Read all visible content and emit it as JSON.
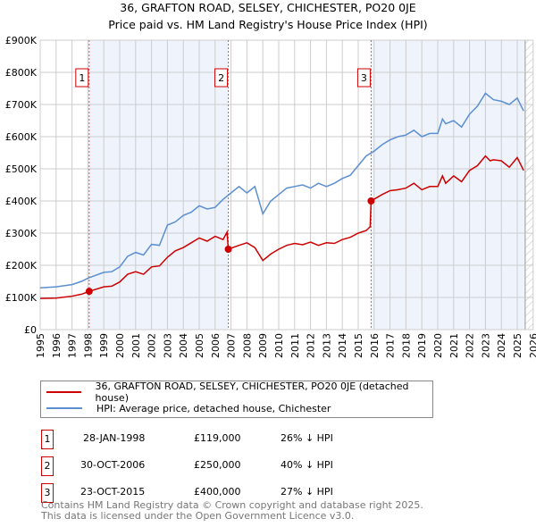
{
  "title_line1": "36, GRAFTON ROAD, SELSEY, CHICHESTER, PO20 0JE",
  "title_line2": "Price paid vs. HM Land Registry's House Price Index (HPI)",
  "chart_data": {
    "type": "line",
    "ylim": [
      0,
      900000
    ],
    "xlim": [
      1995,
      2026
    ],
    "yticks": [
      {
        "v": 0,
        "label": "£0"
      },
      {
        "v": 100000,
        "label": "£100K"
      },
      {
        "v": 200000,
        "label": "£200K"
      },
      {
        "v": 300000,
        "label": "£300K"
      },
      {
        "v": 400000,
        "label": "£400K"
      },
      {
        "v": 500000,
        "label": "£500K"
      },
      {
        "v": 600000,
        "label": "£600K"
      },
      {
        "v": 700000,
        "label": "£700K"
      },
      {
        "v": 800000,
        "label": "£800K"
      },
      {
        "v": 900000,
        "label": "£900K"
      }
    ],
    "xticks": [
      "1995",
      "1996",
      "1997",
      "1998",
      "1999",
      "2000",
      "2001",
      "2002",
      "2003",
      "2004",
      "2005",
      "2006",
      "2007",
      "2008",
      "2009",
      "2010",
      "2011",
      "2012",
      "2013",
      "2014",
      "2015",
      "2016",
      "2017",
      "2018",
      "2019",
      "2020",
      "2021",
      "2022",
      "2023",
      "2024",
      "2025",
      "2026"
    ],
    "grid": true,
    "series": [
      {
        "name": "36, GRAFTON ROAD, SELSEY, CHICHESTER, PO20 0JE (detached house)",
        "color": "#cc0000",
        "x": [
          1995,
          1996,
          1997,
          1997.6,
          1998.08,
          1999,
          1999.5,
          2000,
          2000.5,
          2001,
          2001.5,
          2002,
          2002.5,
          2003,
          2003.5,
          2004,
          2004.5,
          2005,
          2005.5,
          2006,
          2006.5,
          2006.75,
          2006.83,
          2007.5,
          2008,
          2008.5,
          2009,
          2009.5,
          2010,
          2010.5,
          2011,
          2011.5,
          2012,
          2012.5,
          2013,
          2013.5,
          2014,
          2014.5,
          2015,
          2015.5,
          2015.75,
          2015.81,
          2016.5,
          2017,
          2017.5,
          2018,
          2018.5,
          2019,
          2019.5,
          2020,
          2020.3,
          2020.5,
          2021,
          2021.5,
          2022,
          2022.5,
          2023,
          2023.3,
          2023.5,
          2024,
          2024.5,
          2025,
          2025.4
        ],
        "y": [
          97000,
          98000,
          104000,
          110000,
          119000,
          133000,
          135000,
          148000,
          172000,
          180000,
          172000,
          195000,
          198000,
          225000,
          245000,
          255000,
          270000,
          285000,
          275000,
          290000,
          280000,
          303000,
          250000,
          262000,
          270000,
          255000,
          215000,
          235000,
          250000,
          262000,
          268000,
          264000,
          272000,
          262000,
          270000,
          268000,
          280000,
          287000,
          300000,
          308000,
          320000,
          400000,
          420000,
          432000,
          435000,
          440000,
          455000,
          435000,
          445000,
          445000,
          478000,
          455000,
          478000,
          460000,
          495000,
          510000,
          540000,
          525000,
          528000,
          525000,
          505000,
          535000,
          495000
        ]
      },
      {
        "name": "HPI: Average price, detached house, Chichester",
        "color": "#5b8fd0",
        "x": [
          1995,
          1996,
          1997,
          1997.6,
          1998,
          1999,
          1999.5,
          2000,
          2000.5,
          2001,
          2001.5,
          2002,
          2002.5,
          2003,
          2003.5,
          2004,
          2004.5,
          2005,
          2005.5,
          2006,
          2006.5,
          2007,
          2007.5,
          2008,
          2008.5,
          2009,
          2009.5,
          2010,
          2010.5,
          2011,
          2011.5,
          2012,
          2012.5,
          2013,
          2013.5,
          2014,
          2014.5,
          2015,
          2015.5,
          2016,
          2016.5,
          2017,
          2017.5,
          2018,
          2018.5,
          2019,
          2019.5,
          2020,
          2020.3,
          2020.5,
          2021,
          2021.5,
          2022,
          2022.5,
          2023,
          2023.5,
          2024,
          2024.5,
          2025,
          2025.4
        ],
        "y": [
          130000,
          133000,
          140000,
          150000,
          160000,
          178000,
          180000,
          195000,
          228000,
          240000,
          232000,
          265000,
          262000,
          325000,
          335000,
          355000,
          365000,
          385000,
          375000,
          380000,
          405000,
          425000,
          445000,
          425000,
          445000,
          360000,
          400000,
          420000,
          440000,
          445000,
          450000,
          440000,
          455000,
          445000,
          455000,
          470000,
          480000,
          510000,
          540000,
          555000,
          575000,
          590000,
          600000,
          605000,
          620000,
          600000,
          610000,
          610000,
          655000,
          640000,
          650000,
          630000,
          670000,
          695000,
          735000,
          715000,
          710000,
          700000,
          720000,
          680000
        ]
      }
    ],
    "sales": [
      {
        "n": "1",
        "x": 1998.08,
        "y": 119000,
        "date": "28-JAN-1998",
        "price": "£119,000",
        "hpi": "26% ↓ HPI"
      },
      {
        "n": "2",
        "x": 2006.83,
        "y": 250000,
        "date": "30-OCT-2006",
        "price": "£250,000",
        "hpi": "40% ↓ HPI"
      },
      {
        "n": "3",
        "x": 2015.81,
        "y": 400000,
        "date": "23-OCT-2015",
        "price": "£400,000",
        "hpi": "27% ↓ HPI"
      }
    ],
    "shaded_ranges": [
      [
        1998.08,
        2006.83
      ],
      [
        2015.81,
        2025.5
      ]
    ],
    "forecast_from": 2025.5
  },
  "footer_line1": "Contains HM Land Registry data © Crown copyright and database right 2025.",
  "footer_line2": "This data is licensed under the Open Government Licence v3.0."
}
